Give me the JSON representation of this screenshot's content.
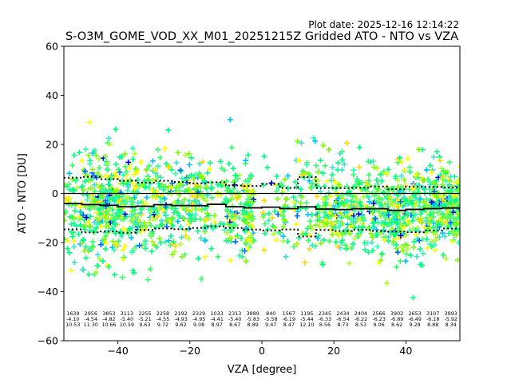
{
  "plot_date_text": "Plot date: 2025-12-16 12:14:22",
  "chart_data": {
    "type": "scatter",
    "title": "S-O3M_GOME_VOD_XX_M01_20251215Z Gridded ATO - NTO vs VZA",
    "xlabel": "VZA [degree]",
    "ylabel": "ATO - NTO [DU]",
    "xlim": [
      -55,
      55
    ],
    "ylim": [
      -60,
      60
    ],
    "xticks": [
      -40,
      -20,
      0,
      20,
      40
    ],
    "yticks": [
      -60,
      -40,
      -20,
      0,
      20,
      40,
      60
    ],
    "marker": "plus",
    "scatter_colors": [
      "#00ff7f",
      "#39ff6a",
      "#7cfc00",
      "#adff2f",
      "#ffff00",
      "#2cffb0",
      "#40e0d0",
      "#00bfff",
      "#0066ff",
      "#0000cd",
      "#ffd700"
    ],
    "zero_line": 0,
    "bins": {
      "centers": [
        -52.5,
        -47.5,
        -42.5,
        -37.5,
        -32.5,
        -27.5,
        -22.5,
        -17.5,
        -12.5,
        -7.5,
        -2.5,
        2.5,
        7.5,
        12.5,
        17.5,
        22.5,
        27.5,
        32.5,
        37.5,
        42.5,
        47.5,
        52.5
      ],
      "counts": [
        "1639",
        "2956",
        "3853",
        "3113",
        "2255",
        "2258",
        "2192",
        "2329",
        "1033",
        "2313",
        "3889",
        "840",
        "1567",
        "1195",
        "2345",
        "2434",
        "2404",
        "2566",
        "3902",
        "2653",
        "3107",
        "3993"
      ],
      "means": [
        "-4.10",
        "-4.54",
        "-4.82",
        "-5.40",
        "-5.21",
        "-4.55",
        "-4.93",
        "-4.95",
        "-4.41",
        "-5.40",
        "-5.83",
        "-5.58",
        "-6.19",
        "-5.44",
        "-6.33",
        "-6.54",
        "-6.22",
        "-6.23",
        "-6.89",
        "-6.49",
        "-6.18",
        "-5.92"
      ],
      "stds": [
        "10.53",
        "11.30",
        "10.66",
        "10.59",
        "9.63",
        "9.72",
        "9.62",
        "9.08",
        "8.97",
        "8.67",
        "8.89",
        "9.47",
        "8.47",
        "12.10",
        "8.56",
        "8.73",
        "8.53",
        "9.06",
        "8.62",
        "9.28",
        "8.88",
        "8.34"
      ]
    }
  }
}
